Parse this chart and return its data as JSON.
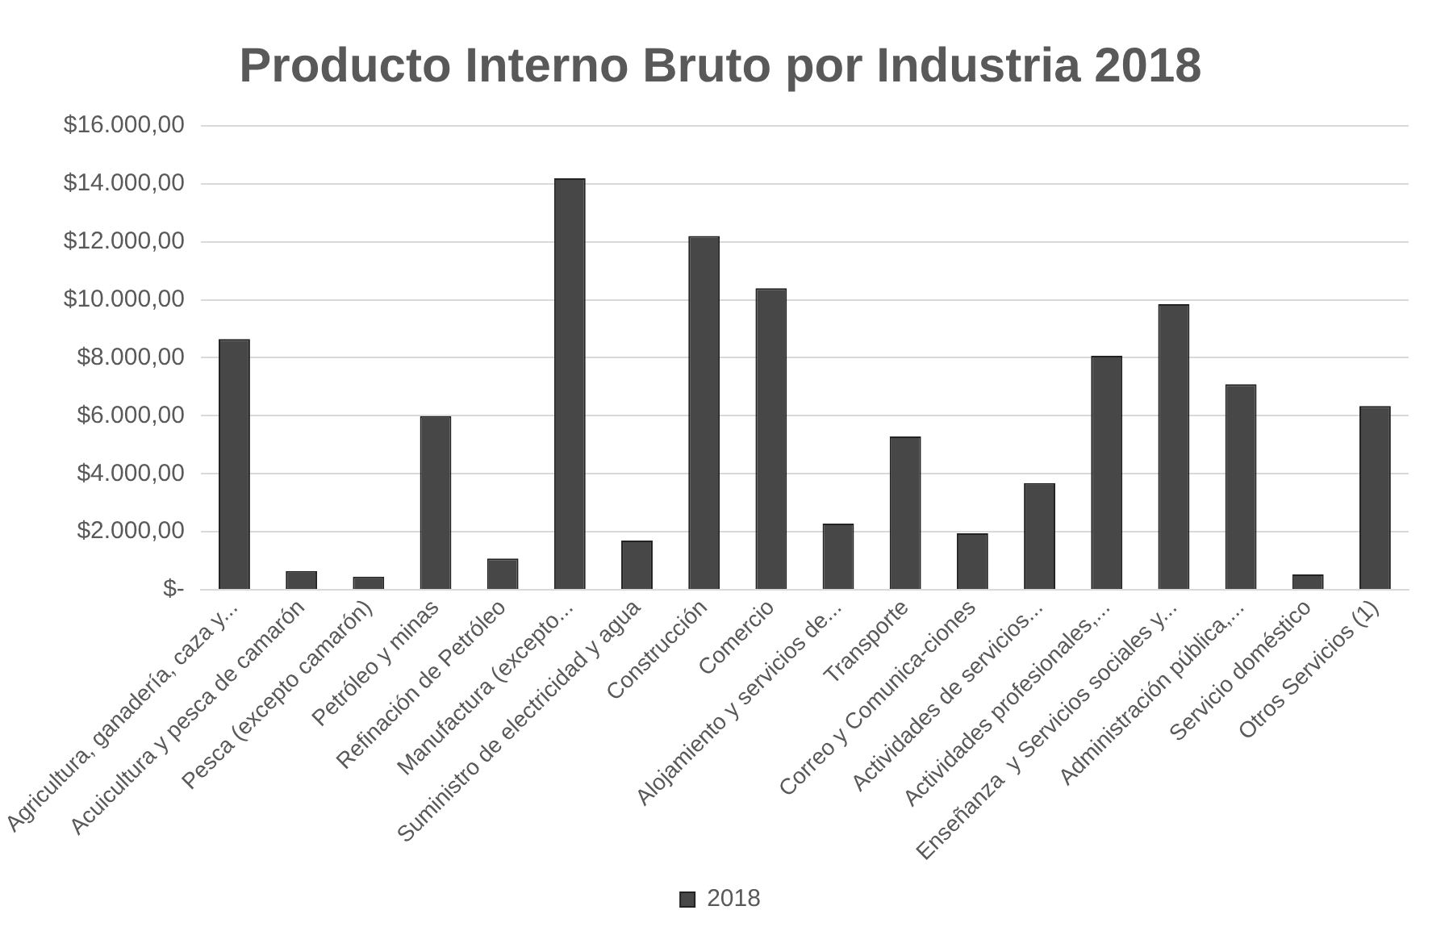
{
  "chart_data": {
    "type": "bar",
    "title": "Producto Interno Bruto por Industria 2018",
    "categories": [
      "Agricultura, ganadería, caza y...",
      "Acuicultura y pesca de camarón",
      "Pesca (excepto camarón)",
      "Petróleo y minas",
      "Refinación de Petróleo",
      "Manufactura (excepto...",
      "Suministro de electricidad y agua",
      "Construcción",
      "Comercio",
      "Alojamiento y servicios de...",
      "Transporte",
      "Correo y Comunica-ciones",
      "Actividades de servicios...",
      "Actividades profesionales,...",
      "Enseñanza  y Servicios sociales y...",
      "Administración pública,...",
      "Servicio doméstico",
      "Otros Servicios (1)"
    ],
    "series": [
      {
        "name": "2018",
        "color": "#474747",
        "values": [
          8650,
          650,
          450,
          5990,
          1080,
          14190,
          1700,
          12200,
          10400,
          2280,
          5290,
          1950,
          3680,
          8070,
          9850,
          7090,
          530,
          6340
        ]
      }
    ],
    "ylim": [
      0,
      16000
    ],
    "yticks": [
      {
        "value": 0,
        "label": "$-"
      },
      {
        "value": 2000,
        "label": "$2.000,00"
      },
      {
        "value": 4000,
        "label": "$4.000,00"
      },
      {
        "value": 6000,
        "label": "$6.000,00"
      },
      {
        "value": 8000,
        "label": "$8.000,00"
      },
      {
        "value": 10000,
        "label": "$10.000,00"
      },
      {
        "value": 12000,
        "label": "$12.000,00"
      },
      {
        "value": 14000,
        "label": "$14.000,00"
      },
      {
        "value": 16000,
        "label": "$16.000,00"
      }
    ],
    "grid": "y",
    "legend": "bottom"
  }
}
